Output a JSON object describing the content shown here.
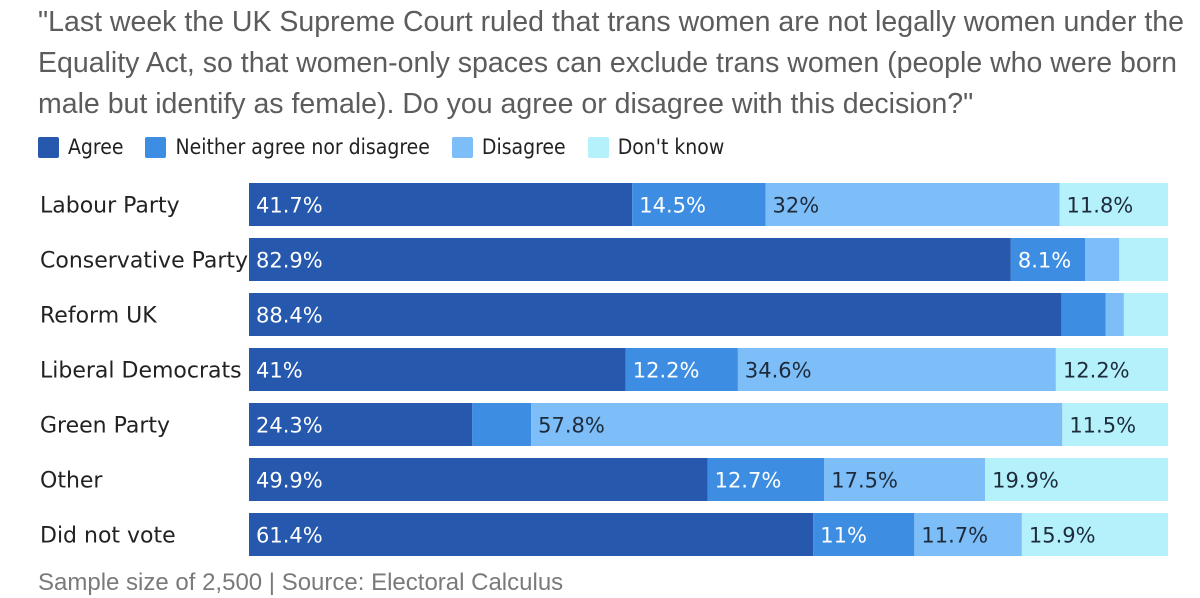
{
  "chart_data": {
    "type": "bar",
    "orientation": "horizontal",
    "stacked": true,
    "title": "\"Last week the UK Supreme Court ruled that trans women are not legally women under the Equality Act, so that women-only spaces can exclude trans women (people who were born male but identify as female). Do you agree or disagree with this decision?\"",
    "categories": [
      "Labour Party",
      "Conservative Party",
      "Reform UK",
      "Liberal Democrats",
      "Green Party",
      "Other",
      "Did not vote"
    ],
    "series": [
      {
        "name": "Agree",
        "color": "#2659ad",
        "values": [
          41.7,
          82.9,
          88.4,
          41,
          24.3,
          49.9,
          61.4
        ]
      },
      {
        "name": "Neither agree nor disagree",
        "color": "#3d8ee3",
        "values": [
          14.5,
          8.1,
          4.8,
          12.2,
          6.4,
          12.7,
          11
        ]
      },
      {
        "name": "Disagree",
        "color": "#7dbdf8",
        "values": [
          32,
          3.7,
          2,
          34.6,
          57.8,
          17.5,
          11.7
        ]
      },
      {
        "name": "Don't know",
        "color": "#b5f1fb",
        "values": [
          11.8,
          5.3,
          4.8,
          12.2,
          11.5,
          19.9,
          15.9
        ]
      }
    ],
    "data_labels": [
      [
        "41.7%",
        "14.5%",
        "32%",
        "11.8%"
      ],
      [
        "82.9%",
        "8.1%",
        "",
        ""
      ],
      [
        "88.4%",
        "",
        "",
        ""
      ],
      [
        "41%",
        "12.2%",
        "34.6%",
        "12.2%"
      ],
      [
        "24.3%",
        "",
        "57.8%",
        "11.5%"
      ],
      [
        "49.9%",
        "12.7%",
        "17.5%",
        "19.9%"
      ],
      [
        "61.4%",
        "11%",
        "11.7%",
        "15.9%"
      ]
    ],
    "xlim": [
      0,
      100
    ],
    "grid": false,
    "legend_position": "top-left"
  },
  "footer": "Sample size of 2,500 | Source: Electoral Calculus"
}
